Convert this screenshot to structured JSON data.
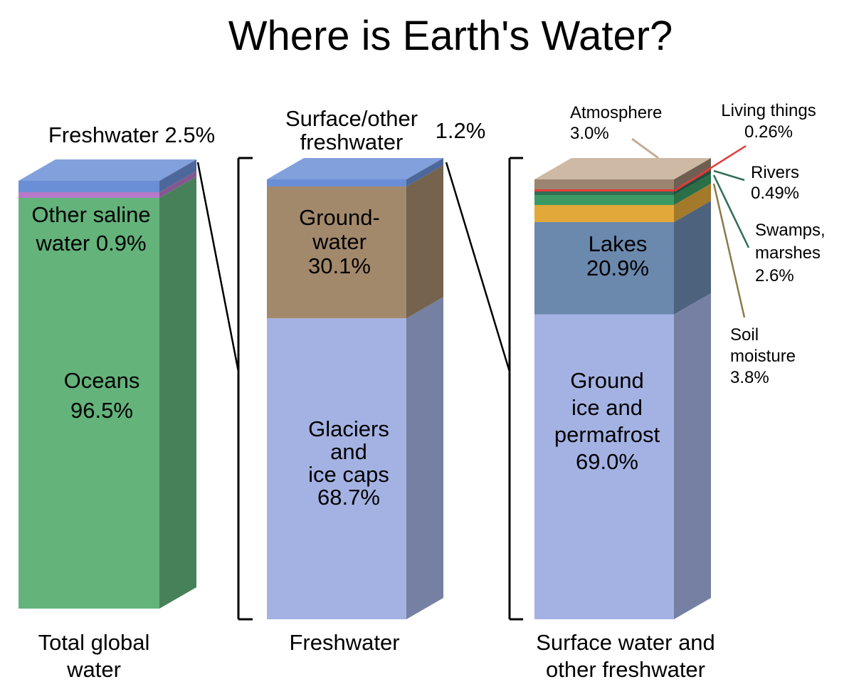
{
  "title": "Where is Earth's Water?",
  "chart_data": [
    {
      "type": "stacked-bar",
      "category": "Total global water",
      "segments": [
        {
          "name": "Oceans",
          "value": 96.5,
          "label_lines": [
            "Oceans",
            "96.5%"
          ]
        },
        {
          "name": "Other saline water",
          "value": 0.9,
          "label_lines": [
            "Other saline",
            "water 0.9%"
          ]
        },
        {
          "name": "Freshwater",
          "value": 2.5,
          "label_lines": [
            "Freshwater 2.5%"
          ]
        }
      ]
    },
    {
      "type": "stacked-bar",
      "category": "Freshwater",
      "segments": [
        {
          "name": "Glaciers and ice caps",
          "value": 68.7,
          "label_lines": [
            "Glaciers",
            "and",
            "ice caps",
            "68.7%"
          ]
        },
        {
          "name": "Groundwater",
          "value": 30.1,
          "label_lines": [
            "Ground-",
            "water",
            "30.1%"
          ]
        },
        {
          "name": "Surface/other freshwater",
          "value": 1.2,
          "label_lines": [
            "Surface/other",
            "freshwater",
            "1.2%"
          ]
        }
      ]
    },
    {
      "type": "stacked-bar",
      "category": "Surface water and other freshwater",
      "segments": [
        {
          "name": "Ground ice and permafrost",
          "value": 69.0,
          "label_lines": [
            "Ground",
            "ice and",
            "permafrost",
            "69.0%"
          ]
        },
        {
          "name": "Lakes",
          "value": 20.9,
          "label_lines": [
            "Lakes",
            "20.9%"
          ]
        },
        {
          "name": "Soil moisture",
          "value": 3.8,
          "label_lines": [
            "Soil",
            "moisture",
            "3.8%"
          ]
        },
        {
          "name": "Swamps, marshes",
          "value": 2.6,
          "label_lines": [
            "Swamps,",
            "marshes",
            "2.6%"
          ]
        },
        {
          "name": "Rivers",
          "value": 0.49,
          "label_lines": [
            "Rivers",
            "0.49%"
          ]
        },
        {
          "name": "Living things",
          "value": 0.26,
          "label_lines": [
            "Living things",
            "0.26%"
          ]
        },
        {
          "name": "Atmosphere",
          "value": 3.0,
          "label_lines": [
            "Atmosphere",
            "3.0%"
          ]
        }
      ]
    }
  ],
  "colors": {
    "oceans": "#63b37b",
    "saline": "#b67ac9",
    "freshwater": "#6b8fd6",
    "glaciers": "#a4b2e3",
    "groundwater": "#a3896c",
    "surface": "#6b8fd6",
    "permafrost": "#a4b2e3",
    "lakes": "#6b88ad",
    "soil": "#e2a83a",
    "swamps": "#3b9a63",
    "rivers": "#2f6e55",
    "living": "#e53b3b",
    "atmosphere": "#9b8470"
  }
}
